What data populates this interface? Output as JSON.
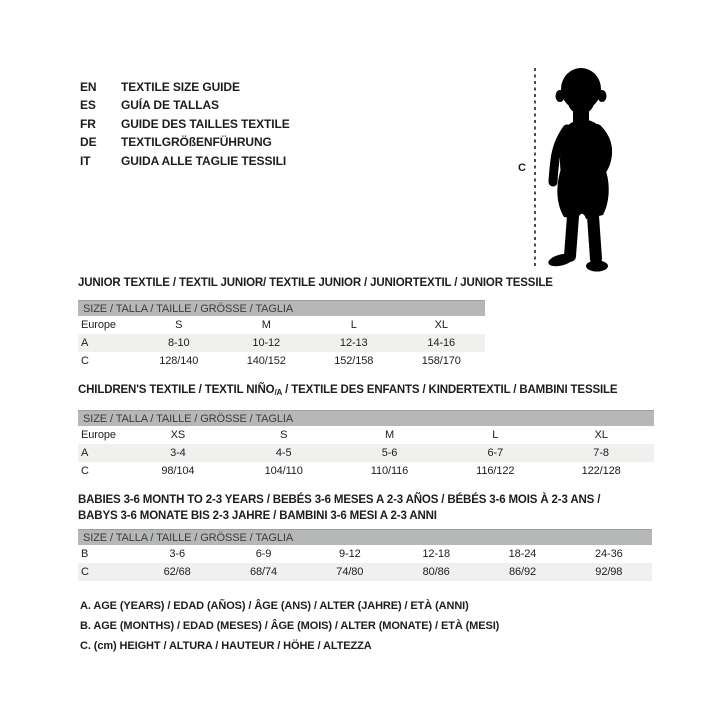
{
  "colors": {
    "ink": "#1d1d1b",
    "band_bg": "#b5b8b6",
    "band_ink": "#3c3c3c",
    "stripe": "#f0f0ef",
    "silhouette": "#000000",
    "dash": "#4c4c4c",
    "page_bg": "#ffffff"
  },
  "languages": [
    {
      "code": "EN",
      "label": "TEXTILE SIZE GUIDE"
    },
    {
      "code": "ES",
      "label": "GUÍA DE TALLAS"
    },
    {
      "code": "FR",
      "label": "GUIDE DES TAILLES TEXTILE"
    },
    {
      "code": "DE",
      "label": "TEXTILGRÖßENFÜHRUNG"
    },
    {
      "code": "IT",
      "label": "GUIDA ALLE TAGLIE TESSILI"
    }
  ],
  "figure": {
    "height_label": "C"
  },
  "tables": [
    {
      "id": "junior",
      "title_lines": [
        [
          {
            "t": "JUNIOR TEXTILE / TEXTIL JUNIOR/ TEXTILE JUNIOR / JUNIORTEXTIL / JUNIOR TESSILE"
          }
        ]
      ],
      "band": "SIZE / TALLA / TAILLE / GRÖSSE / TAGLIA",
      "rows": [
        [
          "Europe",
          "S",
          "M",
          "L",
          "XL"
        ],
        [
          "A",
          "8-10",
          "10-12",
          "12-13",
          "14-16"
        ],
        [
          "C",
          "128/140",
          "140/152",
          "152/158",
          "158/170"
        ]
      ]
    },
    {
      "id": "children",
      "title_lines": [
        [
          {
            "t": "CHILDREN'S TEXTILE / TEXTIL NIÑO"
          },
          {
            "t": "/A",
            "sub": true
          },
          {
            "t": " / TEXTILE DES ENFANTS / KINDERTEXTIL / BAMBINI TESSILE"
          }
        ]
      ],
      "band": "SIZE / TALLA / TAILLE / GRÖSSE / TAGLIA",
      "rows": [
        [
          "Europe",
          "XS",
          "S",
          "M",
          "L",
          "XL"
        ],
        [
          "A",
          "3-4",
          "4-5",
          "5-6",
          "6-7",
          "7-8"
        ],
        [
          "C",
          "98/104",
          "104/110",
          "110/116",
          "116/122",
          "122/128"
        ]
      ]
    },
    {
      "id": "babies",
      "title_lines": [
        [
          {
            "t": "BABIES 3-6 MONTH TO 2-3 YEARS / BEBÉS 3-6 MESES A 2-3 AÑOS / BÉBÉS 3-6 MOIS À 2-3 ANS /"
          }
        ],
        [
          {
            "t": "BABYS 3-6 MONATE BIS 2-3 JAHRE / BAMBINI 3-6 MESI A 2-3 ANNI"
          }
        ]
      ],
      "band": "SIZE / TALLA / TAILLE / GRÖSSE / TAGLIA",
      "rows": [
        [
          "B",
          "3-6",
          "6-9",
          "9-12",
          "12-18",
          "18-24",
          "24-36"
        ],
        [
          "C",
          "62/68",
          "68/74",
          "74/80",
          "80/86",
          "86/92",
          "92/98"
        ]
      ]
    }
  ],
  "legend": [
    "A. AGE (YEARS) / EDAD (AÑOS) / ÂGE (ANS) / ALTER (JAHRE) / ETÀ (ANNI)",
    "B. AGE (MONTHS) / EDAD (MESES) / ÂGE (MOIS) / ALTER (MONATE) / ETÀ (MESI)",
    "C. (cm) HEIGHT / ALTURA / HAUTEUR / HÖHE / ALTEZZA"
  ]
}
